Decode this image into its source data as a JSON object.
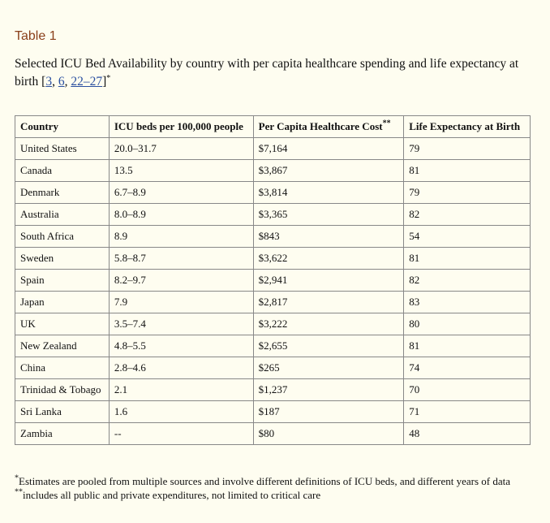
{
  "heading": "Table 1",
  "caption": [
    {
      "text": "Selected ICU Bed Availability by country with per capita healthcare spending and life expectancy at birth ["
    },
    {
      "text": "3",
      "style": "link"
    },
    {
      "text": ", "
    },
    {
      "text": "6",
      "style": "link"
    },
    {
      "text": ", "
    },
    {
      "text": "22–27",
      "style": "link"
    },
    {
      "text": "]"
    },
    {
      "text": "*",
      "style": "sup"
    }
  ],
  "table": {
    "headers": [
      {
        "text": "Country"
      },
      {
        "text": "ICU beds per 100,000 people"
      },
      {
        "text": "Per Capita Healthcare Cost",
        "note": "**"
      },
      {
        "text": "Life Expectancy at Birth"
      }
    ],
    "rows": [
      [
        "United States",
        "20.0–31.7",
        "$7,164",
        "79"
      ],
      [
        "Canada",
        "13.5",
        "$3,867",
        "81"
      ],
      [
        "Denmark",
        "6.7–8.9",
        "$3,814",
        "79"
      ],
      [
        "Australia",
        "8.0–8.9",
        "$3,365",
        "82"
      ],
      [
        "South Africa",
        "8.9",
        "$843",
        "54"
      ],
      [
        "Sweden",
        "5.8–8.7",
        "$3,622",
        "81"
      ],
      [
        "Spain",
        "8.2–9.7",
        "$2,941",
        "82"
      ],
      [
        "Japan",
        "7.9",
        "$2,817",
        "83"
      ],
      [
        "UK",
        "3.5–7.4",
        "$3,222",
        "80"
      ],
      [
        "New Zealand",
        "4.8–5.5",
        "$2,655",
        "81"
      ],
      [
        "China",
        "2.8–4.6",
        "$265",
        "74"
      ],
      [
        "Trinidad & Tobago",
        "2.1",
        "$1,237",
        "70"
      ],
      [
        "Sri Lanka",
        "1.6",
        "$187",
        "71"
      ],
      [
        "Zambia",
        "--",
        "$80",
        "48"
      ]
    ]
  },
  "footnotes": [
    {
      "mark": "*",
      "text": "Estimates are pooled from multiple sources and involve different definitions of ICU beds, and different years of data"
    },
    {
      "mark": "**",
      "text": "includes all public and private expenditures, not limited to critical care"
    }
  ]
}
